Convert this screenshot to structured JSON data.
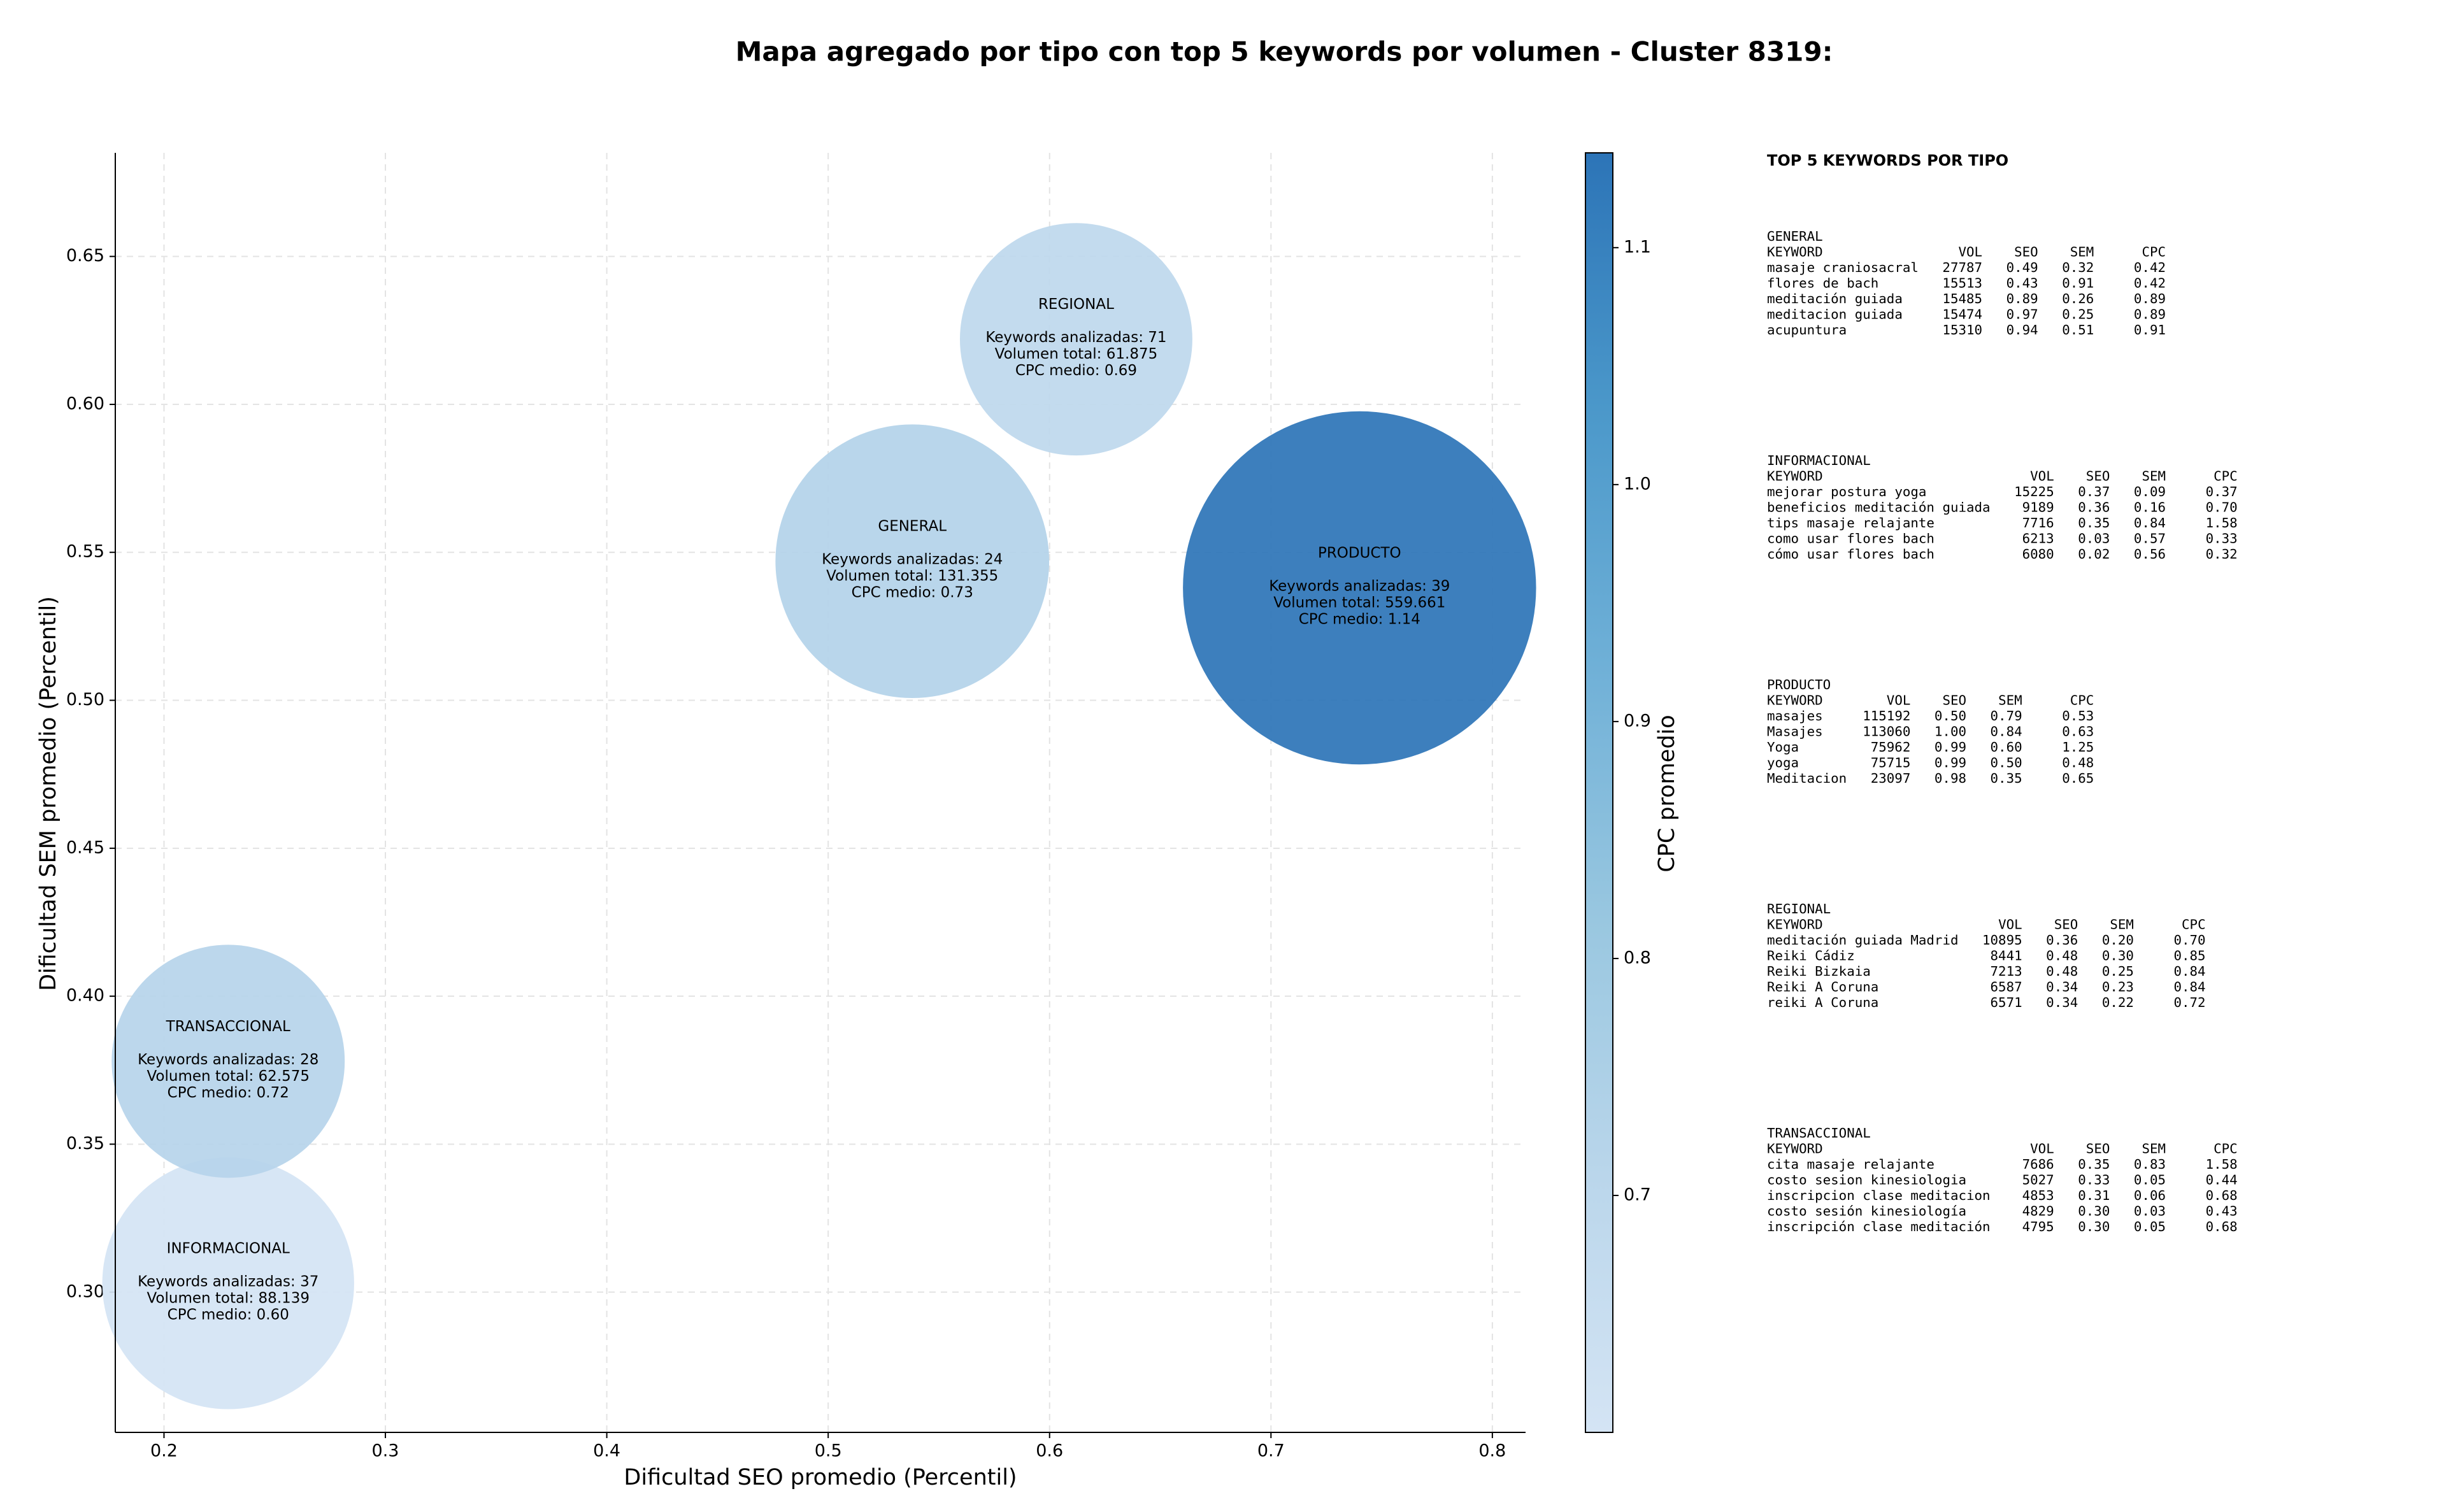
{
  "chart_data": {
    "type": "bubble",
    "title": "Mapa agregado por tipo con top 5 keywords por volumen - Cluster 8319:",
    "x_label": "Dificultad SEO promedio (Percentil)",
    "y_label": "Dificultad SEM promedio (Percentil)",
    "color_label": "CPC promedio",
    "labels": [
      "GENERAL",
      "INFORMACIONAL",
      "PRODUCTO",
      "REGIONAL",
      "TRANSACCIONAL"
    ],
    "x": [
      0.538,
      0.229,
      0.74,
      0.612,
      0.229
    ],
    "values": [
      0.547,
      0.303,
      0.538,
      0.622,
      0.378
    ],
    "sizes": [
      131355,
      88139,
      559661,
      61875,
      62575
    ],
    "color_values": [
      0.73,
      0.6,
      1.14,
      0.69,
      0.72
    ],
    "annotations": [
      [
        "Keywords analizadas: 24",
        "Volumen total: 131.355",
        "CPC medio: 0.73"
      ],
      [
        "Keywords analizadas: 37",
        "Volumen total: 88.139",
        "CPC medio: 0.60"
      ],
      [
        "Keywords analizadas: 39",
        "Volumen total: 559.661",
        "CPC medio: 1.14"
      ],
      [
        "Keywords analizadas: 71",
        "Volumen total: 61.875",
        "CPC medio: 0.69"
      ],
      [
        "Keywords analizadas: 28",
        "Volumen total: 62.575",
        "CPC medio: 0.72"
      ]
    ],
    "xlim": [
      0.178,
      0.815
    ],
    "ylim": [
      0.2526,
      0.685
    ],
    "xticks": [
      0.2,
      0.3,
      0.4,
      0.5,
      0.6,
      0.7,
      0.8
    ],
    "yticks": [
      {
        "value": 0.3,
        "label": "0.30"
      },
      0.35,
      {
        "value": 0.4,
        "label": "0.40"
      },
      0.45,
      {
        "value": 0.5,
        "label": "0.50"
      },
      0.55,
      {
        "value": 0.6,
        "label": "0.60"
      },
      0.65
    ],
    "clim": [
      0.6,
      1.14
    ],
    "cticks": [
      {
        "value": 0.7,
        "label": "0.7"
      },
      {
        "value": 0.8,
        "label": "0.8"
      },
      {
        "value": 0.9,
        "label": "0.9"
      },
      {
        "value": 1,
        "label": "1.0"
      },
      {
        "value": 1.1,
        "label": "1.1"
      }
    ],
    "colormap": [
      "#d4e4f4",
      "#bad6eb",
      "#99c7e0",
      "#6fb0d7",
      "#4b98ca",
      "#2c74b7"
    ],
    "grid": true
  },
  "side_panel": {
    "title": "TOP 5 KEYWORDS POR TIPO",
    "tables": [
      {
        "title": "GENERAL",
        "columns": [
          "KEYWORD",
          "VOL",
          "SEO",
          "SEM",
          "CPC"
        ],
        "rows": [
          [
            "masaje craniosacral",
            "27787",
            "0.49",
            "0.32",
            "0.42"
          ],
          [
            "flores de bach",
            "15513",
            "0.43",
            "0.91",
            "0.42"
          ],
          [
            "meditación guiada",
            "15485",
            "0.89",
            "0.26",
            "0.89"
          ],
          [
            "meditacion guiada",
            "15474",
            "0.97",
            "0.25",
            "0.89"
          ],
          [
            "acupuntura",
            "15310",
            "0.94",
            "0.51",
            "0.91"
          ]
        ]
      },
      {
        "title": "INFORMACIONAL",
        "columns": [
          "KEYWORD",
          "VOL",
          "SEO",
          "SEM",
          "CPC"
        ],
        "rows": [
          [
            "mejorar postura yoga",
            "15225",
            "0.37",
            "0.09",
            "0.37"
          ],
          [
            "beneficios meditación guiada",
            "9189",
            "0.36",
            "0.16",
            "0.70"
          ],
          [
            "tips masaje relajante",
            "7716",
            "0.35",
            "0.84",
            "1.58"
          ],
          [
            "como usar flores bach",
            "6213",
            "0.03",
            "0.57",
            "0.33"
          ],
          [
            "cómo usar flores bach",
            "6080",
            "0.02",
            "0.56",
            "0.32"
          ]
        ]
      },
      {
        "title": "PRODUCTO",
        "columns": [
          "KEYWORD",
          "VOL",
          "SEO",
          "SEM",
          "CPC"
        ],
        "rows": [
          [
            "masajes",
            "115192",
            "0.50",
            "0.79",
            "0.53"
          ],
          [
            "Masajes",
            "113060",
            "1.00",
            "0.84",
            "0.63"
          ],
          [
            "Yoga",
            "75962",
            "0.99",
            "0.60",
            "1.25"
          ],
          [
            "yoga",
            "75715",
            "0.99",
            "0.50",
            "0.48"
          ],
          [
            "Meditacion",
            "23097",
            "0.98",
            "0.35",
            "0.65"
          ]
        ]
      },
      {
        "title": "REGIONAL",
        "columns": [
          "KEYWORD",
          "VOL",
          "SEO",
          "SEM",
          "CPC"
        ],
        "rows": [
          [
            "meditación guiada Madrid",
            "10895",
            "0.36",
            "0.20",
            "0.70"
          ],
          [
            "Reiki Cádiz",
            "8441",
            "0.48",
            "0.30",
            "0.85"
          ],
          [
            "Reiki Bizkaia",
            "7213",
            "0.48",
            "0.25",
            "0.84"
          ],
          [
            "Reiki A Coruna",
            "6587",
            "0.34",
            "0.23",
            "0.84"
          ],
          [
            "reiki A Coruna",
            "6571",
            "0.34",
            "0.22",
            "0.72"
          ]
        ]
      },
      {
        "title": "TRANSACCIONAL",
        "columns": [
          "KEYWORD",
          "VOL",
          "SEO",
          "SEM",
          "CPC"
        ],
        "rows": [
          [
            "cita masaje relajante",
            "7686",
            "0.35",
            "0.83",
            "1.58"
          ],
          [
            "costo sesion kinesiologia",
            "5027",
            "0.33",
            "0.05",
            "0.44"
          ],
          [
            "inscripcion clase meditacion",
            "4853",
            "0.31",
            "0.06",
            "0.68"
          ],
          [
            "costo sesión kinesiología",
            "4829",
            "0.30",
            "0.03",
            "0.43"
          ],
          [
            "inscripción clase meditación",
            "4795",
            "0.30",
            "0.05",
            "0.68"
          ]
        ]
      }
    ]
  }
}
